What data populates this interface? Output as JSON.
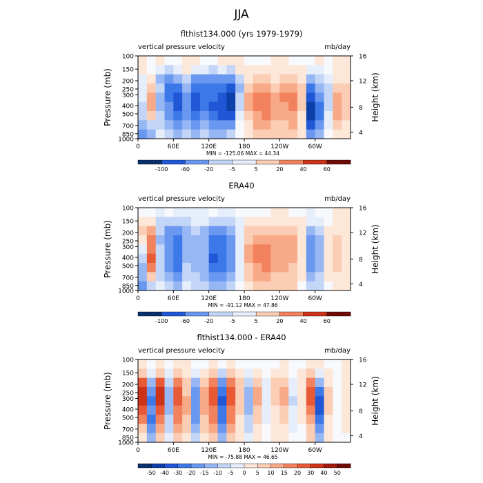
{
  "page_title": "JJA",
  "colors": {
    "neg": [
      "#08306b",
      "#0d3fa8",
      "#1f57d6",
      "#3c78e8",
      "#6a98f0",
      "#97b7f4",
      "#c4d6f7",
      "#e6eefb"
    ],
    "pos": [
      "#fde7d8",
      "#fbcdb4",
      "#f8a987",
      "#f2825d",
      "#e85a36",
      "#cc3318",
      "#a11a0c",
      "#6e0b05"
    ]
  },
  "chart_data": [
    {
      "type": "heatmap",
      "title": "flthist134.000 (yrs 1979-1979)",
      "left_label": "vertical pressure velocity",
      "right_label": "mb/day",
      "ylabel": "Pressure (mb)",
      "y2label": "Height (km)",
      "yticks": [
        "100",
        "150",
        "200",
        "250",
        "300",
        "400",
        "500",
        "700",
        "850",
        "1000"
      ],
      "y2ticks": [
        "16",
        "12",
        "8",
        "4"
      ],
      "xticks": [
        "0",
        "60E",
        "120E",
        "180",
        "120W",
        "60W"
      ],
      "stats": "MIN = -125.06   MAX =  44.34",
      "colorbar_labels": [
        "-100",
        "-60",
        "-20",
        "-5",
        "5",
        "20",
        "40",
        "60"
      ],
      "field": [
        [
          1,
          0,
          1,
          0,
          0,
          1,
          1,
          0,
          0,
          1,
          1,
          1,
          0,
          0,
          0,
          1,
          1,
          0,
          0,
          0,
          1,
          0,
          1,
          1
        ],
        [
          1,
          0,
          -1,
          -2,
          -1,
          1,
          -1,
          -1,
          -2,
          -1,
          -2,
          1,
          1,
          1,
          1,
          1,
          1,
          1,
          1,
          -1,
          -1,
          0,
          1,
          1
        ],
        [
          -1,
          1,
          -3,
          -4,
          -3,
          -2,
          -4,
          -4,
          -4,
          -4,
          -4,
          -2,
          1,
          2,
          2,
          1,
          2,
          2,
          1,
          -3,
          -2,
          -1,
          1,
          1
        ],
        [
          -1,
          2,
          -2,
          -5,
          -5,
          -3,
          -5,
          -5,
          -5,
          -5,
          -6,
          -3,
          2,
          3,
          3,
          2,
          3,
          3,
          2,
          -5,
          -3,
          -2,
          2,
          2
        ],
        [
          -1,
          3,
          -3,
          -5,
          -6,
          -4,
          -6,
          -5,
          -5,
          -6,
          -7,
          -2,
          3,
          4,
          4,
          3,
          4,
          4,
          2,
          -6,
          -4,
          -2,
          3,
          2
        ],
        [
          -2,
          3,
          -3,
          -4,
          -6,
          -4,
          -6,
          -5,
          -6,
          -6,
          -7,
          -2,
          3,
          4,
          4,
          3,
          3,
          4,
          2,
          -7,
          -5,
          -2,
          3,
          2
        ],
        [
          -2,
          2,
          -2,
          -4,
          -5,
          -4,
          -5,
          -4,
          -5,
          -6,
          -6,
          -1,
          2,
          3,
          4,
          3,
          3,
          3,
          1,
          -7,
          -5,
          -1,
          3,
          2
        ],
        [
          -3,
          -2,
          -2,
          -3,
          -4,
          -3,
          -4,
          -3,
          -4,
          -4,
          -4,
          0,
          1,
          3,
          3,
          2,
          2,
          3,
          1,
          -6,
          -4,
          -1,
          2,
          1
        ],
        [
          -4,
          -3,
          -1,
          -2,
          -3,
          -2,
          -3,
          -2,
          -3,
          -3,
          -2,
          0,
          1,
          2,
          2,
          2,
          2,
          2,
          1,
          -4,
          -3,
          0,
          1,
          1
        ]
      ]
    },
    {
      "type": "heatmap",
      "title": "ERA40",
      "left_label": "vertical pressure velocity",
      "right_label": "mb/day",
      "ylabel": "Pressure (mb)",
      "y2label": "Height (km)",
      "yticks": [
        "100",
        "150",
        "200",
        "250",
        "300",
        "400",
        "500",
        "700",
        "850",
        "1000"
      ],
      "y2ticks": [
        "16",
        "12",
        "8",
        "4"
      ],
      "xticks": [
        "0",
        "60E",
        "120E",
        "180",
        "120W",
        "60W"
      ],
      "stats": "MIN = -91.12   MAX =  47.86",
      "colorbar_labels": [
        "-100",
        "-60",
        "-20",
        "-5",
        "5",
        "20",
        "40",
        "60"
      ],
      "field": [
        [
          0,
          0,
          -1,
          0,
          -1,
          -1,
          -1,
          -1,
          0,
          -1,
          -1,
          0,
          0,
          0,
          0,
          1,
          1,
          0,
          0,
          -1,
          0,
          0,
          1,
          1
        ],
        [
          1,
          1,
          -2,
          -2,
          -2,
          -2,
          -1,
          -1,
          -2,
          -2,
          -2,
          -1,
          1,
          1,
          1,
          1,
          1,
          1,
          1,
          -1,
          -1,
          0,
          1,
          1
        ],
        [
          2,
          3,
          -2,
          -4,
          -4,
          -3,
          -2,
          -3,
          -4,
          -4,
          -3,
          -1,
          2,
          2,
          2,
          2,
          2,
          2,
          1,
          -3,
          -2,
          1,
          1,
          1
        ],
        [
          1,
          4,
          -3,
          -4,
          -5,
          -3,
          -3,
          -3,
          -5,
          -5,
          -4,
          -1,
          2,
          3,
          3,
          3,
          3,
          3,
          1,
          -4,
          -3,
          1,
          2,
          1
        ],
        [
          -1,
          4,
          -2,
          -4,
          -5,
          -3,
          -3,
          -3,
          -5,
          -5,
          -4,
          -1,
          3,
          4,
          4,
          3,
          3,
          3,
          1,
          -4,
          -3,
          1,
          2,
          1
        ],
        [
          -2,
          5,
          -2,
          -4,
          -5,
          -3,
          -3,
          -3,
          -6,
          -5,
          -4,
          -1,
          3,
          4,
          4,
          3,
          3,
          3,
          1,
          -4,
          -3,
          1,
          2,
          1
        ],
        [
          -3,
          4,
          -2,
          -4,
          -5,
          -2,
          -3,
          -3,
          -5,
          -5,
          -4,
          -1,
          2,
          3,
          4,
          3,
          3,
          2,
          1,
          -4,
          -3,
          1,
          2,
          1
        ],
        [
          -3,
          2,
          -2,
          -3,
          -4,
          -2,
          -2,
          -3,
          -4,
          -4,
          -3,
          -1,
          2,
          3,
          3,
          2,
          2,
          2,
          1,
          -3,
          -2,
          1,
          1,
          1
        ],
        [
          -4,
          -2,
          -1,
          -2,
          -3,
          -1,
          -2,
          -2,
          -3,
          -3,
          -2,
          0,
          1,
          2,
          2,
          2,
          2,
          2,
          0,
          -2,
          -2,
          0,
          1,
          1
        ]
      ]
    },
    {
      "type": "heatmap",
      "title": "flthist134.000 - ERA40",
      "left_label": "vertical pressure velocity",
      "right_label": "mb/day",
      "ylabel": "Pressure (mb)",
      "y2label": "Height (km)",
      "yticks": [
        "100",
        "150",
        "200",
        "250",
        "300",
        "400",
        "500",
        "700",
        "850",
        "1000"
      ],
      "y2ticks": [
        "16",
        "12",
        "8",
        "4"
      ],
      "xticks": [
        "0",
        "60E",
        "120E",
        "180",
        "120W",
        "60W"
      ],
      "stats": "MIN = -75.88   MAX =  46.65",
      "colorbar_labels": [
        "-50",
        "-40",
        "-30",
        "-20",
        "-15",
        "-10",
        "-5",
        "0",
        "5",
        "10",
        "15",
        "20",
        "30",
        "40",
        "50"
      ],
      "field": [
        [
          1,
          0,
          1,
          0,
          1,
          1,
          0,
          0,
          1,
          0,
          1,
          0,
          0,
          0,
          0,
          0,
          1,
          0,
          0,
          1,
          1,
          0,
          0,
          1
        ],
        [
          2,
          -1,
          2,
          -1,
          2,
          1,
          -1,
          1,
          2,
          -2,
          2,
          1,
          -1,
          1,
          0,
          1,
          1,
          0,
          1,
          2,
          -1,
          1,
          0,
          1
        ],
        [
          5,
          -3,
          5,
          -2,
          4,
          2,
          -3,
          2,
          4,
          -4,
          4,
          2,
          -2,
          2,
          -1,
          2,
          2,
          -1,
          1,
          4,
          -3,
          1,
          0,
          1
        ],
        [
          6,
          -4,
          6,
          -3,
          5,
          2,
          -4,
          3,
          5,
          -5,
          5,
          2,
          -3,
          3,
          -1,
          2,
          3,
          -1,
          1,
          5,
          -5,
          2,
          0,
          1
        ],
        [
          6,
          -5,
          6,
          -3,
          5,
          3,
          -4,
          3,
          5,
          -6,
          5,
          2,
          -3,
          3,
          -1,
          2,
          3,
          -2,
          1,
          5,
          -6,
          2,
          0,
          1
        ],
        [
          5,
          -4,
          5,
          -3,
          4,
          3,
          -4,
          3,
          4,
          -5,
          4,
          2,
          -3,
          2,
          -1,
          1,
          2,
          -1,
          1,
          4,
          -6,
          2,
          0,
          1
        ],
        [
          4,
          -5,
          4,
          -2,
          4,
          2,
          -4,
          2,
          4,
          -5,
          4,
          1,
          -2,
          2,
          -1,
          1,
          2,
          -1,
          1,
          3,
          -5,
          1,
          0,
          1
        ],
        [
          2,
          -4,
          3,
          -2,
          3,
          2,
          -3,
          2,
          3,
          -4,
          3,
          1,
          -2,
          1,
          0,
          1,
          1,
          -1,
          0,
          2,
          -4,
          1,
          0,
          1
        ],
        [
          1,
          -3,
          2,
          -1,
          2,
          1,
          -2,
          1,
          2,
          -3,
          2,
          1,
          -1,
          1,
          0,
          1,
          1,
          0,
          0,
          2,
          -3,
          1,
          0,
          0
        ]
      ]
    }
  ]
}
